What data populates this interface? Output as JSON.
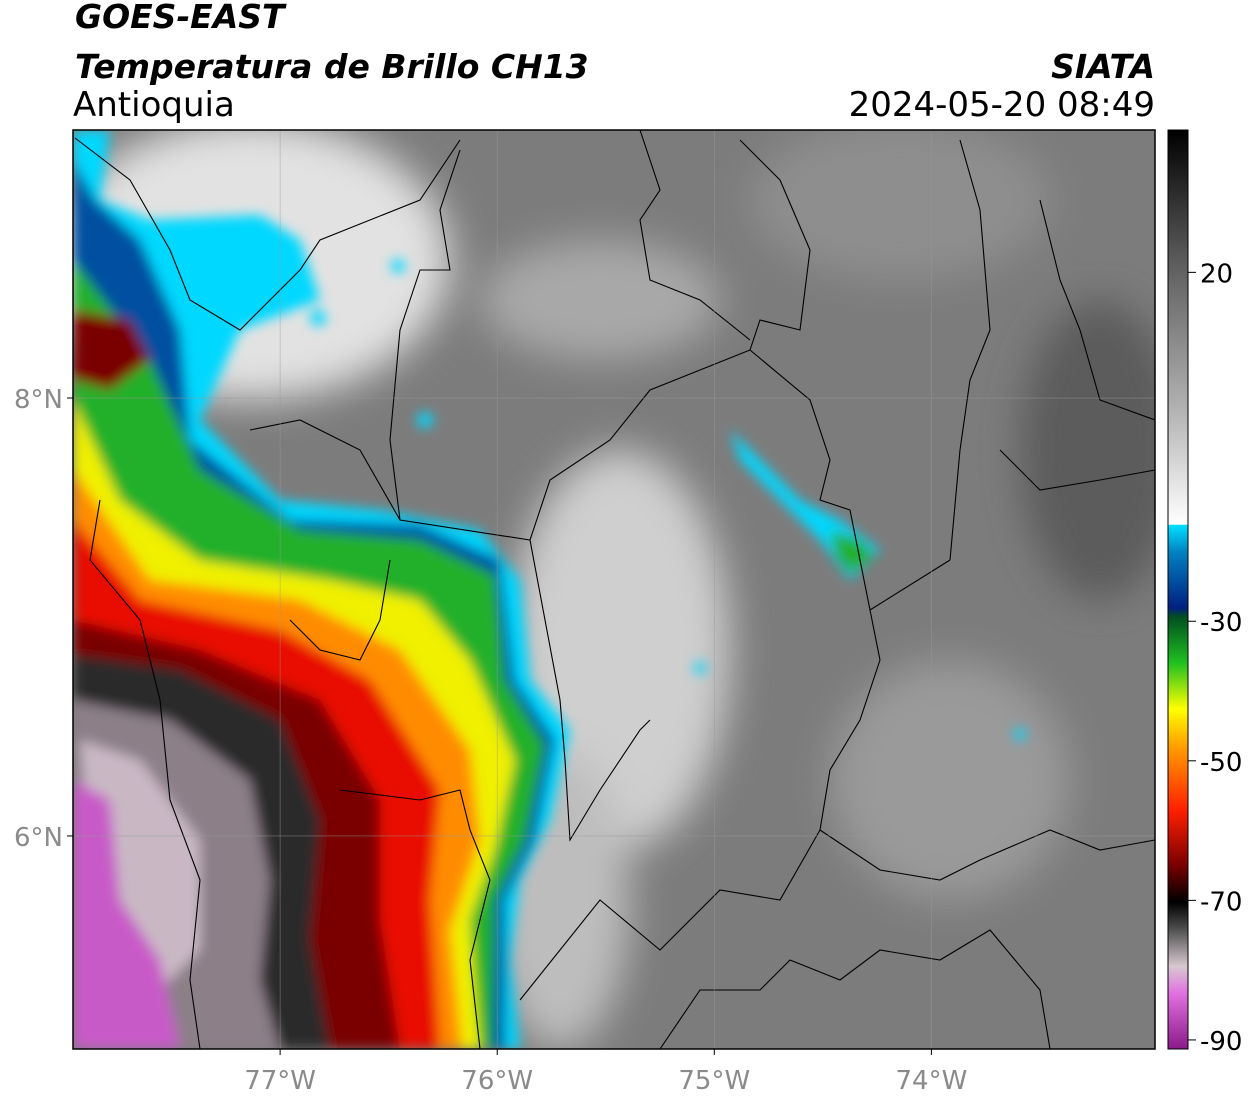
{
  "header": {
    "title": "GOES-EAST",
    "subtitle": "Temperatura de Brillo CH13",
    "region": "Antioquia",
    "agency": "SIATA",
    "datetime": "2024-05-20 08:49"
  },
  "map": {
    "lon_range": [
      -77.954,
      -72.97
    ],
    "lat_range": [
      5.027,
      9.224
    ],
    "lon_ticks": [
      {
        "value": -77,
        "label": "77°W"
      },
      {
        "value": -76,
        "label": "76°W"
      },
      {
        "value": -75,
        "label": "75°W"
      },
      {
        "value": -74,
        "label": "74°W"
      }
    ],
    "lat_ticks": [
      {
        "value": 8,
        "label": "8°N"
      },
      {
        "value": 6,
        "label": "6°N"
      }
    ],
    "grid": true
  },
  "colorbar": {
    "range": [
      -91.3,
      40.4
    ],
    "ticks": [
      20,
      -30,
      -50,
      -70,
      -90
    ]
  }
}
